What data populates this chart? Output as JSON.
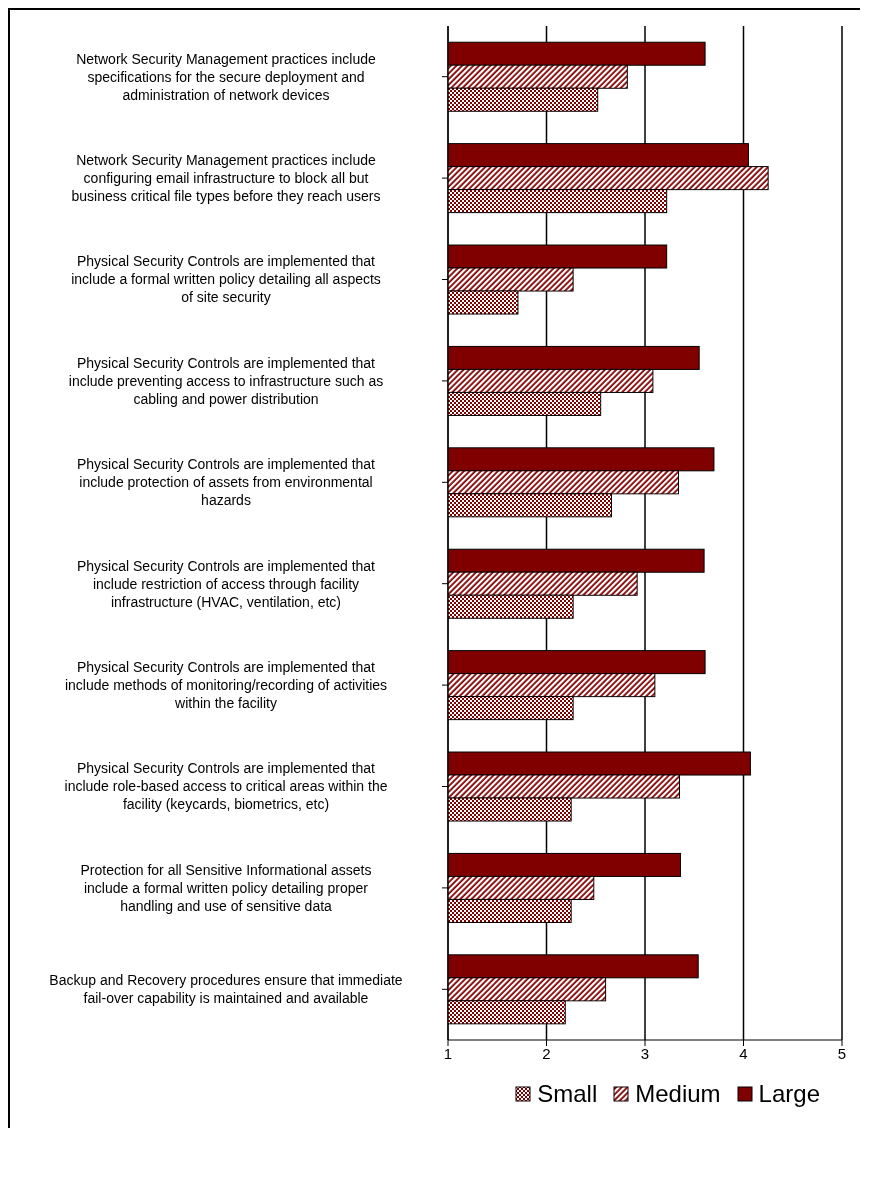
{
  "chart_data": {
    "type": "bar",
    "orientation": "horizontal",
    "categories": [
      "Network Security Management practices include specifications for the secure deployment and administration of network devices",
      "Network Security Management practices include configuring email infrastructure to block all but business critical file types before they reach users",
      "Physical Security Controls are implemented that include a formal written policy detailing all aspects of site security",
      "Physical Security Controls are implemented that include preventing access to infrastructure such as cabling and power distribution",
      "Physical Security Controls are implemented that include protection of assets from environmental hazards",
      "Physical Security Controls are implemented that include restriction of access through facility infrastructure (HVAC, ventilation, etc)",
      "Physical Security Controls are implemented that include methods of monitoring/recording of activities within the facility",
      "Physical Security Controls are implemented that include role-based access to critical areas within the facility (keycards, biometrics, etc)",
      "Protection for all Sensitive Informational assets include a formal written policy detailing proper handling and use of sensitive data",
      "Backup and Recovery procedures ensure that immediate fail-over capability is maintained and available"
    ],
    "series": [
      {
        "name": "Small",
        "color": "#800000",
        "values": [
          2.52,
          3.22,
          1.71,
          2.55,
          2.66,
          2.27,
          2.27,
          2.25,
          2.25,
          2.19
        ]
      },
      {
        "name": "Medium",
        "color": "#800000",
        "values": [
          2.82,
          4.25,
          2.27,
          3.08,
          3.34,
          2.92,
          3.1,
          3.35,
          2.48,
          2.6
        ]
      },
      {
        "name": "Large",
        "color": "#800000",
        "values": [
          3.61,
          4.05,
          3.22,
          3.55,
          3.7,
          3.6,
          3.61,
          4.07,
          3.36,
          3.54
        ]
      }
    ],
    "xlim": [
      1,
      5
    ],
    "xticks": [
      1,
      2,
      3,
      4,
      5
    ],
    "grid": "x",
    "legend": "bottom"
  }
}
